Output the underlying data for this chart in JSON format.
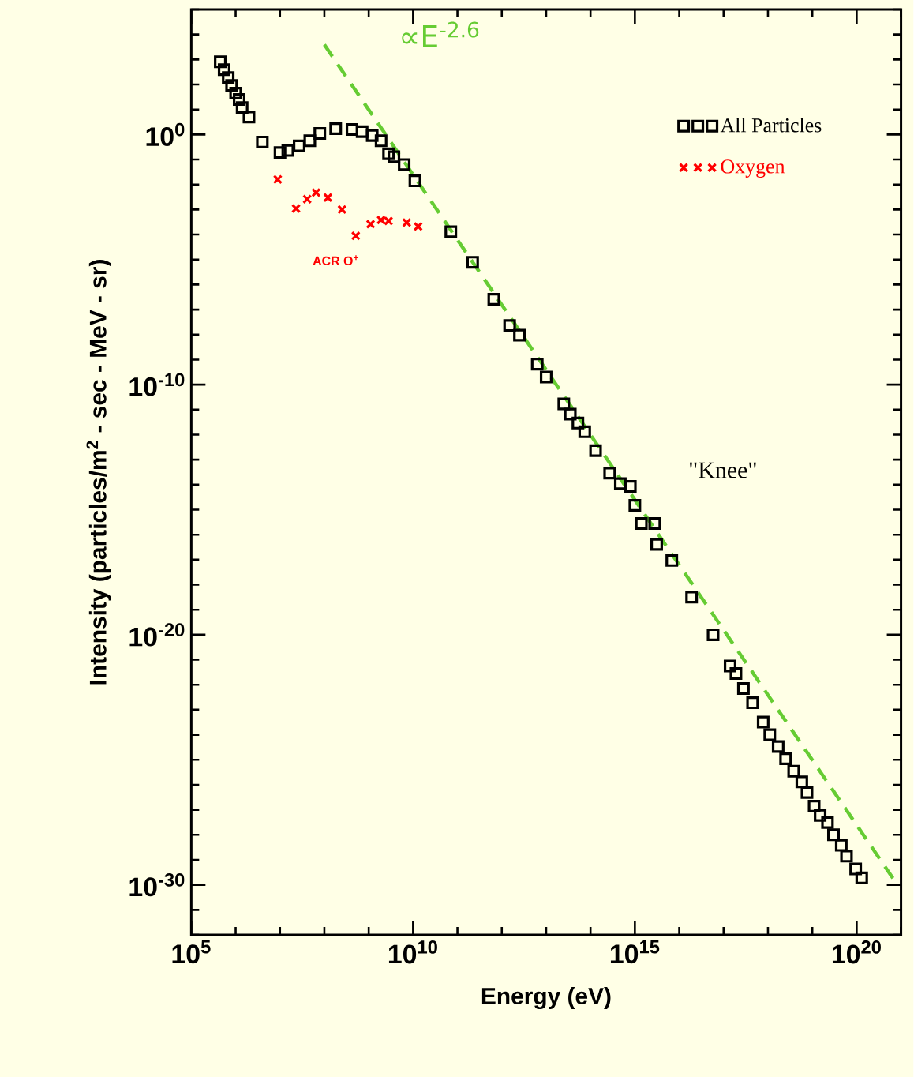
{
  "chart_data": {
    "type": "scatter",
    "xlabel": "Energy (eV)",
    "ylabel": "Intensity (particles/m$^{2}$ - sec - MeV - sr)",
    "log": "xy",
    "legend": "top right",
    "grid": false,
    "xlim": [
      100000.0,
      1e+21
    ],
    "ylim": [
      1e-32,
      100000.0
    ],
    "xticks": [
      {
        "value": 100000.0,
        "label": "10$^{5}$"
      },
      {
        "value": 1000000.0,
        "label": null
      },
      {
        "value": 10000000.0,
        "label": null
      },
      {
        "value": 100000000.0,
        "label": null
      },
      {
        "value": 1000000000.0,
        "label": null
      },
      {
        "value": 10000000000.0,
        "label": "10$^{10}$"
      },
      {
        "value": 100000000000.0,
        "label": null
      },
      {
        "value": 1000000000000.0,
        "label": null
      },
      {
        "value": 10000000000000.0,
        "label": null
      },
      {
        "value": 100000000000000.0,
        "label": null
      },
      {
        "value": 1000000000000000.0,
        "label": "10$^{15}$"
      },
      {
        "value": 1e+16,
        "label": null
      },
      {
        "value": 1e+17,
        "label": null
      },
      {
        "value": 1e+18,
        "label": null
      },
      {
        "value": 1e+19,
        "label": null
      },
      {
        "value": 1e+20,
        "label": "10$^{20}$"
      },
      {
        "value": 1e+21,
        "label": null
      }
    ],
    "yticks": [
      {
        "value": 1e-32,
        "label": null
      },
      {
        "value": 1e-31,
        "label": null
      },
      {
        "value": 1e-30,
        "label": "10$^{-30}$"
      },
      {
        "value": 1e-29,
        "label": null
      },
      {
        "value": 1e-28,
        "label": null
      },
      {
        "value": 1e-27,
        "label": null
      },
      {
        "value": 1e-26,
        "label": null
      },
      {
        "value": 1e-25,
        "label": null
      },
      {
        "value": 1e-24,
        "label": null
      },
      {
        "value": 1e-23,
        "label": null
      },
      {
        "value": 1e-22,
        "label": null
      },
      {
        "value": 1e-21,
        "label": null
      },
      {
        "value": 1e-20,
        "label": "10$^{-20}$"
      },
      {
        "value": 1e-19,
        "label": null
      },
      {
        "value": 1e-18,
        "label": null
      },
      {
        "value": 1e-17,
        "label": null
      },
      {
        "value": 1e-16,
        "label": null
      },
      {
        "value": 1e-15,
        "label": null
      },
      {
        "value": 1e-14,
        "label": null
      },
      {
        "value": 1e-13,
        "label": null
      },
      {
        "value": 1e-12,
        "label": null
      },
      {
        "value": 1e-11,
        "label": null
      },
      {
        "value": 1e-10,
        "label": "10$^{-10}$"
      },
      {
        "value": 1e-09,
        "label": null
      },
      {
        "value": 1e-08,
        "label": null
      },
      {
        "value": 1e-07,
        "label": null
      },
      {
        "value": 1e-06,
        "label": null
      },
      {
        "value": 1e-05,
        "label": null
      },
      {
        "value": 0.0001,
        "label": null
      },
      {
        "value": 0.001,
        "label": null
      },
      {
        "value": 0.01,
        "label": null
      },
      {
        "value": 0.1,
        "label": null
      },
      {
        "value": 1,
        "label": "10$^{0}$"
      },
      {
        "value": 10.0,
        "label": null
      },
      {
        "value": 100.0,
        "label": null
      },
      {
        "value": 1000.0,
        "label": null
      },
      {
        "value": 10000.0,
        "label": null
      },
      {
        "value": 100000.0,
        "label": null
      }
    ],
    "series": [
      {
        "name": "All Particles",
        "marker": "square",
        "color": "#000000",
        "x": [
          450000.0,
          550000.0,
          680000.0,
          810000.0,
          1000000.0,
          1200000.0,
          1400000.0,
          2000000.0,
          4000000.0,
          10000000.0,
          15000000.0,
          27000000.0,
          47000000.0,
          79000000.0,
          180000000.0,
          420000000.0,
          710000000.0,
          1200000000.0,
          1900000000.0,
          2800000000.0,
          3700000000.0,
          6300000000.0,
          11000000000.0,
          71000000000.0,
          220000000000.0,
          660000000000.0,
          1500000000000.0,
          2500000000000.0,
          6300000000000.0,
          10000000000000.0,
          25000000000000.0,
          35000000000000.0,
          52000000000000.0,
          74000000000000.0,
          130000000000000.0,
          270000000000000.0,
          470000000000000.0,
          790000000000000.0,
          1000000000000000.0,
          1400000000000000.0,
          2800000000000000.0,
          3100000000000000.0,
          6800000000000000.0,
          1.9e+16,
          5.8e+16,
          1.4e+17,
          1.9e+17,
          2.8e+17,
          4.5e+17,
          7.8e+17,
          1.1e+18,
          1.7e+18,
          2.5e+18,
          3.8e+18,
          5.8e+18,
          7.6e+18,
          1.1e+19,
          1.5e+19,
          2.2e+19,
          3e+19,
          4.5e+19,
          5.9e+19,
          9.5e+19,
          1.3e+20
        ],
        "values": [
          810.0,
          390.0,
          190.0,
          91.0,
          45.0,
          25.0,
          12.0,
          5.0,
          0.5,
          0.19,
          0.23,
          0.35,
          0.56,
          1.1,
          1.7,
          1.6,
          1.3,
          0.91,
          0.56,
          0.17,
          0.13,
          0.063,
          0.014,
          0.00013,
          7.8e-06,
          2.6e-07,
          2.3e-08,
          9.5e-09,
          6.6e-10,
          2e-10,
          1.7e-11,
          6.6e-12,
          2.9e-12,
          1.3e-12,
          2.3e-13,
          2.9e-14,
          1.1e-14,
          8.5e-15,
          1.5e-15,
          2.8e-16,
          2.8e-16,
          4.1e-17,
          9.3e-18,
          3.2e-19,
          1e-20,
          5.6e-22,
          2.8e-22,
          7.1e-23,
          1.9e-23,
          3.2e-24,
          1e-24,
          3.4e-25,
          1.1e-25,
          3.5e-26,
          1.3e-26,
          4.9e-27,
          1.4e-27,
          6e-28,
          3.1e-28,
          1e-28,
          3.8e-29,
          1.4e-29,
          4.3e-30,
          1.9e-30
        ]
      },
      {
        "name": "Oxygen",
        "marker": "cross",
        "color": "#ff0000",
        "x": [
          8900000.0,
          23000000.0,
          41000000.0,
          65000000.0,
          120000000.0,
          250000000.0,
          510000000.0,
          1100000000.0,
          1900000000.0,
          2800000000.0,
          7200000000.0,
          13000000000.0
        ],
        "values": [
          0.016,
          0.0011,
          0.0026,
          0.0048,
          0.003,
          0.001,
          8.9e-05,
          0.00026,
          0.00038,
          0.00035,
          0.0003,
          0.00021
        ]
      },
      {
        "type": "line",
        "line_style": "dashed",
        "marker": "none",
        "color": "#66cc33",
        "x": [
          100000000.0,
          8e+20
        ],
        "values": [
          3900.0,
          1.1e-30
        ]
      }
    ],
    "annotations": [
      "∝E$^{-2.6}$",
      "\"Knee\"",
      "ACR O$^{+}$"
    ]
  }
}
